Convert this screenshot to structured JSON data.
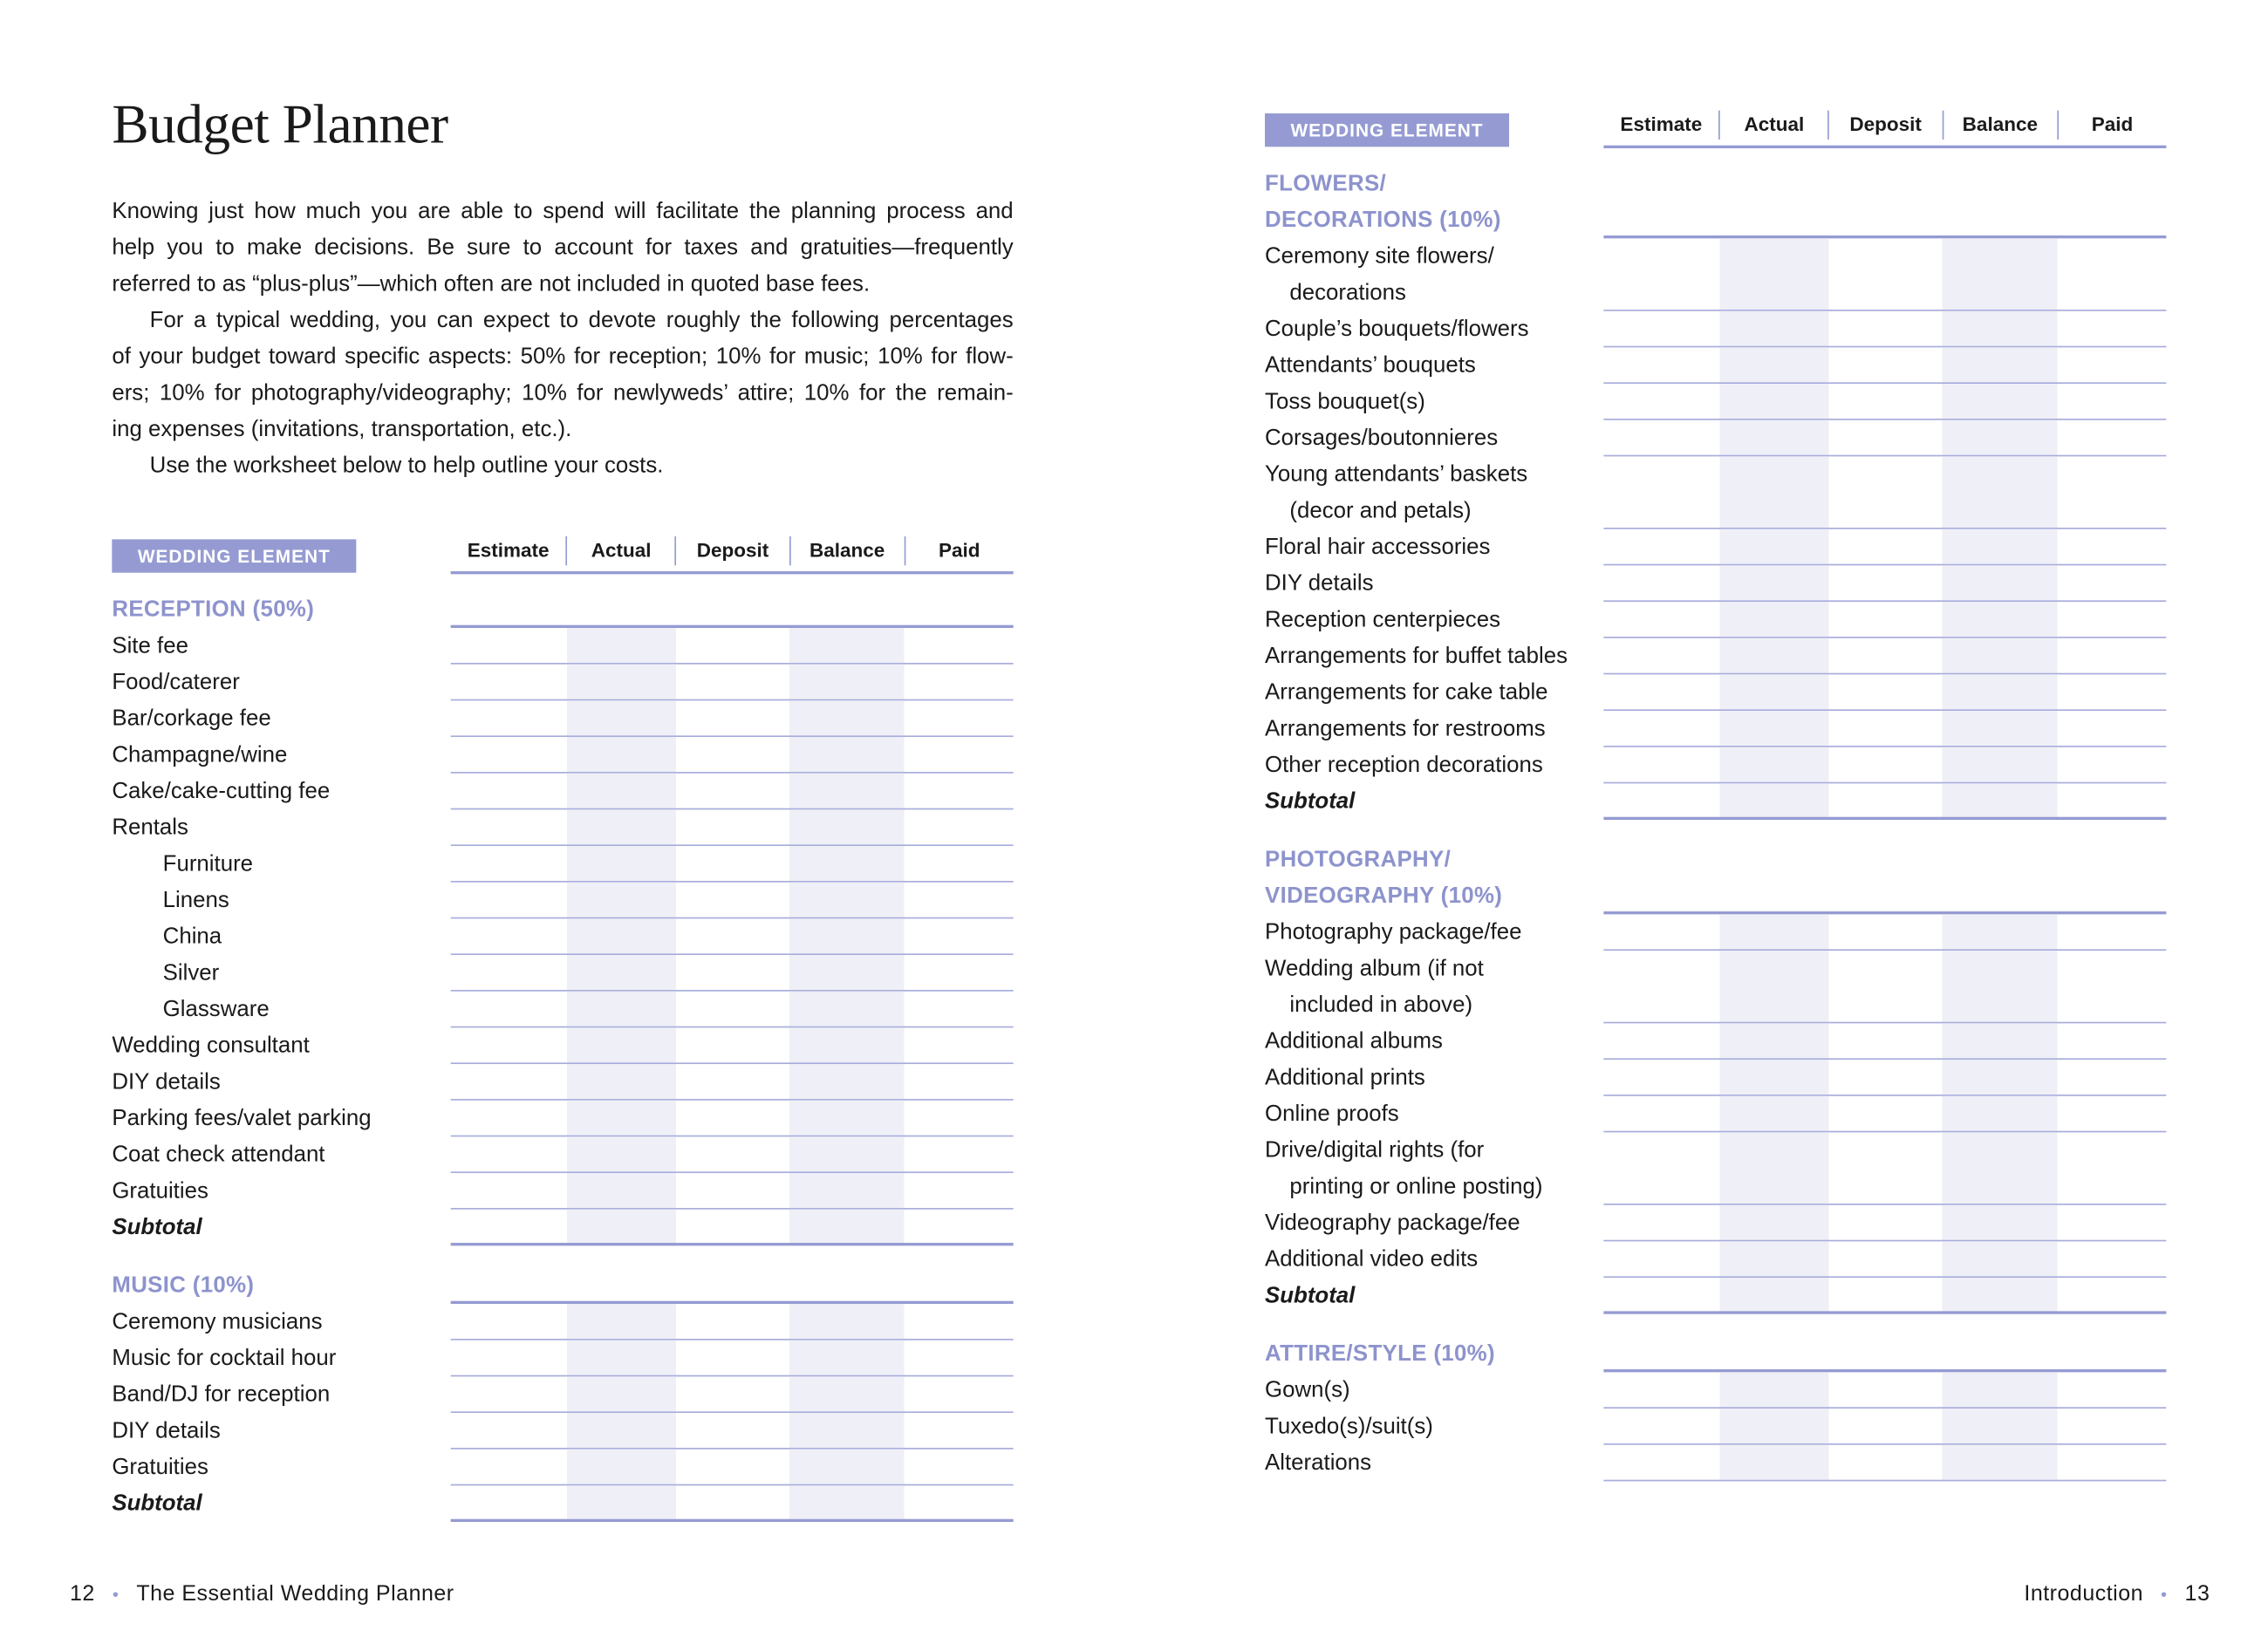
{
  "title": "Budget Planner",
  "intro_lines": [
    {
      "text": "Knowing just how much you are able to spend will facilitate the planning process and"
    },
    {
      "text": "help you to make decisions. Be sure to account for taxes and gratuities—frequently"
    },
    {
      "text": "referred to as “plus-plus”—which often are not included in quoted base fees.",
      "last": true
    },
    {
      "text": "For a typical wedding, you can expect to devote roughly the following percentages",
      "indent": true
    },
    {
      "text": "of your budget toward specific aspects: 50% for reception; 10% for music; 10% for flow-"
    },
    {
      "text": "ers; 10% for photography/videography; 10% for newlyweds’ attire; 10% for the remain-"
    },
    {
      "text": "ing expenses (invitations, transportation, etc.).",
      "last": true
    },
    {
      "text": "Use the worksheet below to help outline your costs.",
      "indent": true,
      "last": true
    }
  ],
  "table_header": {
    "element_label": "WEDDING ELEMENT",
    "columns": [
      "Estimate",
      "Actual",
      "Deposit",
      "Balance",
      "Paid"
    ]
  },
  "accent_color": "#959bd2",
  "shade_color": "#efeff7",
  "left_sections": [
    {
      "title": [
        "RECEPTION (50%)"
      ],
      "items": [
        {
          "lines": [
            "Site fee"
          ]
        },
        {
          "lines": [
            "Food/caterer"
          ]
        },
        {
          "lines": [
            "Bar/corkage fee"
          ]
        },
        {
          "lines": [
            "Champagne/wine"
          ]
        },
        {
          "lines": [
            "Cake/cake-cutting fee"
          ]
        },
        {
          "lines": [
            "Rentals"
          ]
        },
        {
          "lines": [
            "Furniture"
          ],
          "sub": true
        },
        {
          "lines": [
            "Linens"
          ],
          "sub": true
        },
        {
          "lines": [
            "China"
          ],
          "sub": true
        },
        {
          "lines": [
            "Silver"
          ],
          "sub": true
        },
        {
          "lines": [
            "Glassware"
          ],
          "sub": true
        },
        {
          "lines": [
            "Wedding consultant"
          ]
        },
        {
          "lines": [
            "DIY details"
          ]
        },
        {
          "lines": [
            "Parking fees/valet parking"
          ]
        },
        {
          "lines": [
            "Coat check attendant"
          ]
        },
        {
          "lines": [
            "Gratuities"
          ]
        },
        {
          "lines": [
            "Subtotal"
          ],
          "subtotal": true
        }
      ]
    },
    {
      "title": [
        "MUSIC (10%)"
      ],
      "items": [
        {
          "lines": [
            "Ceremony musicians"
          ]
        },
        {
          "lines": [
            "Music for cocktail hour"
          ]
        },
        {
          "lines": [
            "Band/DJ for reception"
          ]
        },
        {
          "lines": [
            "DIY details"
          ]
        },
        {
          "lines": [
            "Gratuities"
          ]
        },
        {
          "lines": [
            "Subtotal"
          ],
          "subtotal": true
        }
      ]
    }
  ],
  "right_sections": [
    {
      "title": [
        "FLOWERS/",
        "DECORATIONS (10%)"
      ],
      "items": [
        {
          "lines": [
            "Ceremony site flowers/",
            "decorations"
          ]
        },
        {
          "lines": [
            "Couple’s bouquets/flowers"
          ]
        },
        {
          "lines": [
            "Attendants’ bouquets"
          ]
        },
        {
          "lines": [
            "Toss bouquet(s)"
          ]
        },
        {
          "lines": [
            "Corsages/boutonnieres"
          ]
        },
        {
          "lines": [
            "Young attendants’ baskets",
            "(decor and petals)"
          ]
        },
        {
          "lines": [
            "Floral hair accessories"
          ]
        },
        {
          "lines": [
            "DIY details"
          ]
        },
        {
          "lines": [
            "Reception centerpieces"
          ]
        },
        {
          "lines": [
            "Arrangements for buffet tables"
          ]
        },
        {
          "lines": [
            "Arrangements for cake table"
          ]
        },
        {
          "lines": [
            "Arrangements for restrooms"
          ]
        },
        {
          "lines": [
            "Other reception decorations"
          ]
        },
        {
          "lines": [
            "Subtotal"
          ],
          "subtotal": true
        }
      ]
    },
    {
      "title": [
        "PHOTOGRAPHY/",
        "VIDEOGRAPHY (10%)"
      ],
      "items": [
        {
          "lines": [
            "Photography package/fee"
          ]
        },
        {
          "lines": [
            "Wedding album (if not",
            "included in above)"
          ]
        },
        {
          "lines": [
            "Additional albums"
          ]
        },
        {
          "lines": [
            "Additional prints"
          ]
        },
        {
          "lines": [
            "Online proofs"
          ]
        },
        {
          "lines": [
            "Drive/digital rights (for",
            "printing or online posting)"
          ]
        },
        {
          "lines": [
            "Videography package/fee"
          ]
        },
        {
          "lines": [
            "Additional video edits"
          ]
        },
        {
          "lines": [
            "Subtotal"
          ],
          "subtotal": true
        }
      ]
    },
    {
      "title": [
        "ATTIRE/STYLE (10%)"
      ],
      "items": [
        {
          "lines": [
            "Gown(s)"
          ]
        },
        {
          "lines": [
            "Tuxedo(s)/suit(s)"
          ]
        },
        {
          "lines": [
            "Alterations"
          ]
        }
      ]
    }
  ],
  "footer": {
    "left_page_number": "12",
    "left_text": "The Essential Wedding Planner",
    "right_text": "Introduction",
    "right_page_number": "13",
    "separator": "•"
  }
}
